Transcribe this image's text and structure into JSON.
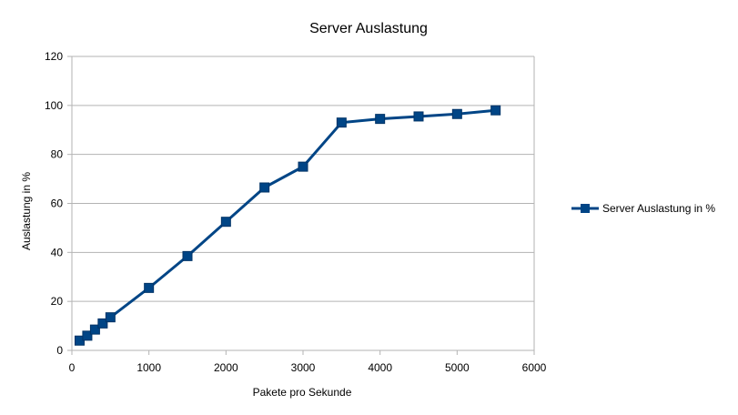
{
  "chart_data": {
    "type": "line",
    "title": "Server Auslastung",
    "xlabel": "Pakete pro Sekunde",
    "ylabel": "Auslastung in %",
    "xlim": [
      0,
      6000
    ],
    "ylim": [
      0,
      120
    ],
    "xticks": [
      0,
      1000,
      2000,
      3000,
      4000,
      5000,
      6000
    ],
    "yticks": [
      0,
      20,
      40,
      60,
      80,
      100,
      120
    ],
    "grid": "horizontal",
    "legend_position": "right",
    "color": "#004586",
    "series": [
      {
        "name": "Server Auslastung in %",
        "x": [
          100,
          200,
          300,
          400,
          500,
          1000,
          1500,
          2000,
          2500,
          3000,
          3500,
          4000,
          4500,
          5000,
          5500
        ],
        "y": [
          4,
          6,
          8.5,
          11,
          13.5,
          25.5,
          38.5,
          52.5,
          66.5,
          75,
          93,
          94.5,
          95.5,
          96.5,
          98
        ]
      }
    ]
  }
}
